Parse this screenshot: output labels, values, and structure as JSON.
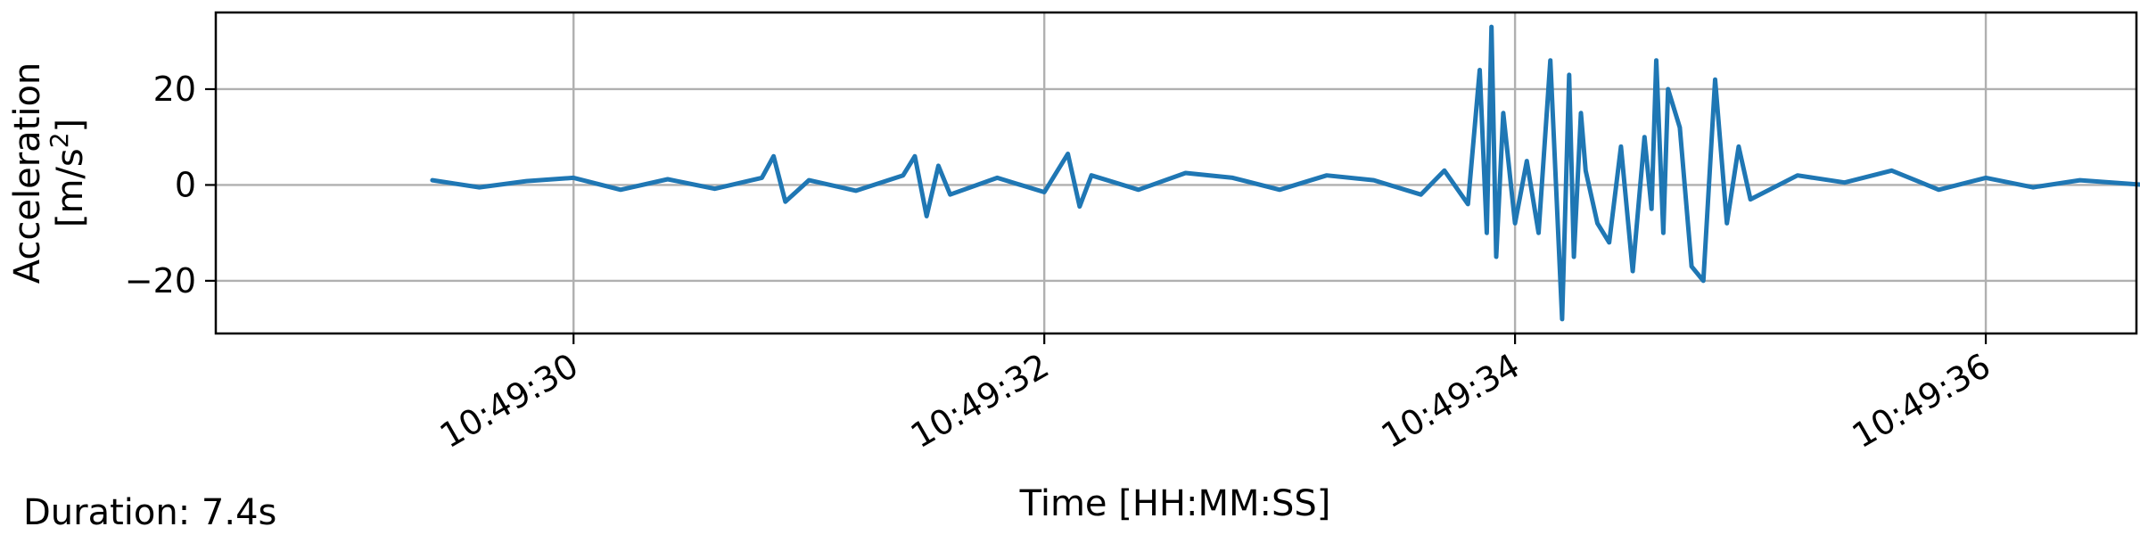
{
  "chart_data": {
    "type": "line",
    "title": "",
    "xlabel": "Time [HH:MM:SS]",
    "ylabel_line1": "Acceleration",
    "ylabel_line2_prefix": "[m/s",
    "ylabel_line2_sup": "2",
    "ylabel_line2_suffix": "]",
    "xlim": [
      -1.52,
      6.64
    ],
    "ylim": [
      -31,
      36
    ],
    "x_ticks": [
      {
        "value": 0,
        "label": "10:49:30"
      },
      {
        "value": 2,
        "label": "10:49:32"
      },
      {
        "value": 4,
        "label": "10:49:34"
      },
      {
        "value": 6,
        "label": "10:49:36"
      }
    ],
    "y_ticks": [
      {
        "value": 20,
        "label": "20"
      },
      {
        "value": 0,
        "label": "0"
      },
      {
        "value": -20,
        "label": "−20"
      }
    ],
    "grid": true,
    "series": [
      {
        "color": "#1f77b4",
        "x": [
          -0.6,
          -0.4,
          -0.2,
          0.0,
          0.2,
          0.4,
          0.6,
          0.8,
          0.85,
          0.9,
          1.0,
          1.2,
          1.4,
          1.45,
          1.5,
          1.55,
          1.6,
          1.8,
          2.0,
          2.1,
          2.15,
          2.2,
          2.4,
          2.6,
          2.8,
          3.0,
          3.2,
          3.4,
          3.6,
          3.7,
          3.8,
          3.85,
          3.88,
          3.9,
          3.92,
          3.95,
          4.0,
          4.05,
          4.1,
          4.15,
          4.2,
          4.23,
          4.25,
          4.28,
          4.3,
          4.35,
          4.4,
          4.45,
          4.5,
          4.55,
          4.58,
          4.6,
          4.63,
          4.65,
          4.7,
          4.75,
          4.8,
          4.85,
          4.9,
          4.95,
          5.0,
          5.2,
          5.4,
          5.6,
          5.8,
          6.0,
          6.2,
          6.4,
          6.82
        ],
        "y": [
          1.0,
          -0.5,
          0.8,
          1.5,
          -1.0,
          1.2,
          -0.8,
          1.5,
          6.0,
          -3.5,
          1.0,
          -1.2,
          2.0,
          6.0,
          -6.5,
          4.0,
          -2.0,
          1.5,
          -1.5,
          6.5,
          -4.5,
          2.0,
          -1.0,
          2.5,
          1.5,
          -1.0,
          2.0,
          1.0,
          -2.0,
          3.0,
          -4.0,
          24.0,
          -10.0,
          33.0,
          -15.0,
          15.0,
          -8.0,
          5.0,
          -10.0,
          26.0,
          -28.0,
          23.0,
          -15.0,
          15.0,
          3.0,
          -8.0,
          -12.0,
          8.0,
          -18.0,
          10.0,
          -5.0,
          26.0,
          -10.0,
          20.0,
          12.0,
          -17.0,
          -20.0,
          22.0,
          -8.0,
          8.0,
          -3.0,
          2.0,
          0.5,
          3.0,
          -1.0,
          1.5,
          -0.5,
          1.0,
          -0.5
        ]
      }
    ]
  },
  "footer": {
    "duration": "Duration: 7.4s"
  }
}
